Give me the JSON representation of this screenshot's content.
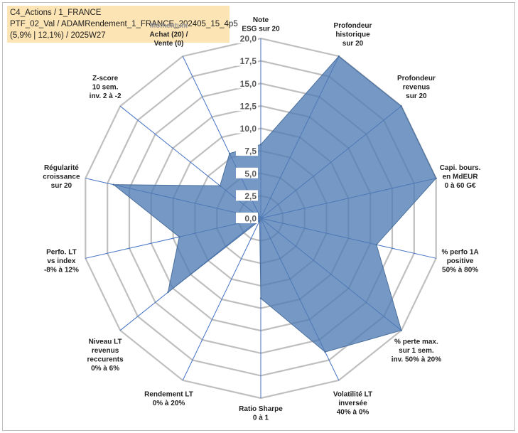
{
  "info": {
    "line1": "C4_Actions / 1_FRANCE",
    "line2": "PTF_02_Val / ADAMRendement_1_FRANCE_202405_15_4p5",
    "line3": "(5,9% | 12,1%) / 2025W27"
  },
  "colors": {
    "fill": "#4f7bb3",
    "stroke": "#4a6f9d",
    "grid": "#bfbfbf",
    "spoke": "#4472c4",
    "info_bg": "#fce4b4"
  },
  "chart_data": {
    "type": "radar",
    "range": [
      0,
      20
    ],
    "tick_step": 2.5,
    "tick_labels": [
      "0,0",
      "2,5",
      "5,0",
      "7,5",
      "10,0",
      "12,5",
      "15,0",
      "17,5",
      "20,0"
    ],
    "axes": [
      {
        "label": [
          "Note",
          "ESG sur 20"
        ],
        "value": 8.2
      },
      {
        "label": [
          "Profondeur",
          "historique",
          "sur 20"
        ],
        "value": 20
      },
      {
        "label": [
          "Profondeur",
          "revenus",
          "sur 20"
        ],
        "value": 20
      },
      {
        "label": [
          "Capi. bours.",
          "en MdEUR",
          "0 à 60 G€"
        ],
        "value": 20
      },
      {
        "label": [
          "% perfo 1A",
          "positive",
          "50% à 80%"
        ],
        "value": 13.2
      },
      {
        "label": [
          "% perte max.",
          "sur 1 sem.",
          "inv. 50% à 20%"
        ],
        "value": 20
      },
      {
        "label": [
          "Volatilité LT",
          "inversée",
          "40% à 0%"
        ],
        "value": 16.5
      },
      {
        "label": [
          "Ratio Sharpe",
          "0 à 1"
        ],
        "value": 8.9
      },
      {
        "label": [
          "Rendement LT",
          "0% à 20%"
        ],
        "value": 0.3
      },
      {
        "label": [
          "Niveau LT",
          "revenus",
          "reccurents",
          "0% à 6%"
        ],
        "value": 13.2
      },
      {
        "label": [
          "Perfo. LT",
          "vs index",
          "-8% à 12%"
        ],
        "value": 9.3
      },
      {
        "label": [
          "Régularité",
          "croissance",
          "sur 20"
        ],
        "value": 16.8
      },
      {
        "label": [
          "Z-score",
          "10 sem.",
          "inv. 2 à -2"
        ],
        "value": 5.8
      },
      {
        "label": [
          "Momentum",
          "Achat (20) /",
          "Vente (0)"
        ],
        "value": 8.0,
        "first_line_muted": true
      }
    ]
  }
}
